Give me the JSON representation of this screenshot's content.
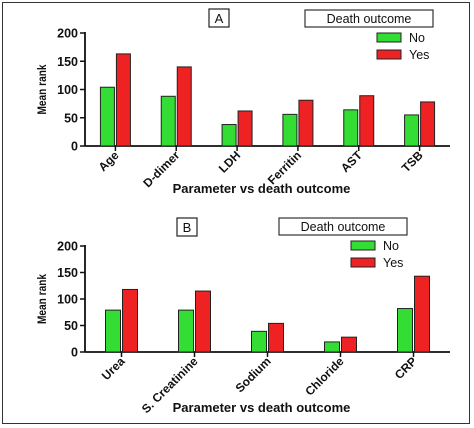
{
  "chart_data": [
    {
      "type": "bar",
      "panel_label": "A",
      "categories": [
        "Age",
        "D-dimer",
        "LDH",
        "Ferritin",
        "AST",
        "TSB"
      ],
      "series": [
        {
          "name": "No",
          "color": "#33dd33",
          "values": [
            104,
            88,
            38,
            56,
            64,
            55
          ]
        },
        {
          "name": "Yes",
          "color": "#ee2222",
          "values": [
            163,
            140,
            62,
            81,
            89,
            78
          ]
        }
      ],
      "legend_title": "Death outcome",
      "xlabel": "Parameter vs death outcome",
      "ylabel": "Mean rank",
      "ylim": [
        0,
        200
      ],
      "yticks": [
        0,
        50,
        100,
        150,
        200
      ],
      "grid": false,
      "legend_position": "top-right"
    },
    {
      "type": "bar",
      "panel_label": "B",
      "categories": [
        "Urea",
        "S. Creatinine",
        "Sodium",
        "Chloride",
        "CRP"
      ],
      "series": [
        {
          "name": "No",
          "color": "#33dd33",
          "values": [
            79,
            79,
            39,
            19,
            82
          ]
        },
        {
          "name": "Yes",
          "color": "#ee2222",
          "values": [
            118,
            115,
            54,
            28,
            143
          ]
        }
      ],
      "legend_title": "Death outcome",
      "xlabel": "Parameter vs death outcome",
      "ylabel": "Mean rank",
      "ylim": [
        0,
        200
      ],
      "yticks": [
        0,
        50,
        100,
        150,
        200
      ],
      "grid": false,
      "legend_position": "top-right"
    }
  ]
}
